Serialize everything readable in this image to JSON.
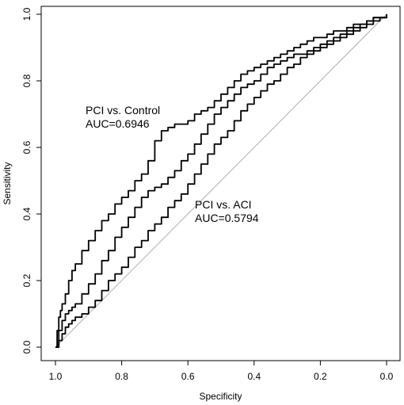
{
  "chart_data": {
    "type": "line",
    "title": "",
    "xlabel": "Specificity",
    "ylabel": "Sensitivity",
    "xlim": [
      1.0,
      0.0
    ],
    "ylim": [
      0.0,
      1.0
    ],
    "x_reversed": true,
    "grid": false,
    "legend": "none",
    "x_ticks": [
      "1.0",
      "0.8",
      "0.6",
      "0.4",
      "0.2",
      "0.0"
    ],
    "y_ticks": [
      "0.0",
      "0.2",
      "0.4",
      "0.6",
      "0.8",
      "1.0"
    ],
    "reference_line": {
      "from": [
        1.0,
        0.0
      ],
      "to": [
        0.0,
        1.0
      ],
      "color": "#b0b0b0"
    },
    "annotations": [
      {
        "line1": "PCI vs. Control",
        "line2": "AUC=0.6946"
      },
      {
        "line1": "PCI vs. ACI",
        "line2": "AUC=0.5794"
      }
    ],
    "series": [
      {
        "color": "#000000",
        "x": [
          1.0,
          0.995,
          0.99,
          0.985,
          0.98,
          0.97,
          0.96,
          0.95,
          0.94,
          0.92,
          0.9,
          0.88,
          0.86,
          0.84,
          0.82,
          0.8,
          0.78,
          0.76,
          0.74,
          0.72,
          0.7,
          0.68,
          0.66,
          0.64,
          0.62,
          0.6,
          0.58,
          0.56,
          0.54,
          0.52,
          0.5,
          0.48,
          0.46,
          0.44,
          0.42,
          0.4,
          0.38,
          0.36,
          0.34,
          0.32,
          0.3,
          0.28,
          0.26,
          0.24,
          0.22,
          0.2,
          0.18,
          0.16,
          0.14,
          0.12,
          0.1,
          0.08,
          0.06,
          0.04,
          0.02,
          0.0
        ],
        "y": [
          0.0,
          0.05,
          0.09,
          0.11,
          0.13,
          0.16,
          0.2,
          0.23,
          0.25,
          0.29,
          0.32,
          0.35,
          0.38,
          0.4,
          0.43,
          0.45,
          0.47,
          0.5,
          0.52,
          0.56,
          0.62,
          0.65,
          0.66,
          0.67,
          0.67,
          0.68,
          0.7,
          0.71,
          0.72,
          0.74,
          0.76,
          0.78,
          0.8,
          0.82,
          0.83,
          0.84,
          0.85,
          0.86,
          0.87,
          0.88,
          0.89,
          0.9,
          0.91,
          0.92,
          0.93,
          0.93,
          0.94,
          0.95,
          0.95,
          0.96,
          0.97,
          0.97,
          0.98,
          0.99,
          0.99,
          1.0
        ]
      },
      {
        "color": "#000000",
        "x": [
          1.0,
          0.99,
          0.98,
          0.97,
          0.96,
          0.95,
          0.94,
          0.92,
          0.9,
          0.88,
          0.86,
          0.84,
          0.82,
          0.8,
          0.78,
          0.76,
          0.74,
          0.72,
          0.7,
          0.68,
          0.66,
          0.64,
          0.62,
          0.6,
          0.58,
          0.56,
          0.54,
          0.52,
          0.5,
          0.48,
          0.46,
          0.44,
          0.42,
          0.4,
          0.38,
          0.36,
          0.34,
          0.32,
          0.3,
          0.28,
          0.26,
          0.24,
          0.22,
          0.2,
          0.18,
          0.16,
          0.14,
          0.12,
          0.1,
          0.08,
          0.06,
          0.04,
          0.02,
          0.0
        ],
        "y": [
          0.0,
          0.05,
          0.08,
          0.1,
          0.11,
          0.12,
          0.13,
          0.16,
          0.19,
          0.22,
          0.26,
          0.29,
          0.33,
          0.36,
          0.39,
          0.42,
          0.45,
          0.47,
          0.48,
          0.49,
          0.51,
          0.53,
          0.56,
          0.58,
          0.61,
          0.64,
          0.67,
          0.7,
          0.72,
          0.74,
          0.76,
          0.78,
          0.79,
          0.8,
          0.82,
          0.84,
          0.85,
          0.86,
          0.87,
          0.88,
          0.88,
          0.89,
          0.9,
          0.91,
          0.92,
          0.93,
          0.94,
          0.95,
          0.96,
          0.97,
          0.98,
          0.99,
          0.99,
          1.0
        ]
      },
      {
        "color": "#000000",
        "x": [
          1.0,
          0.99,
          0.98,
          0.97,
          0.96,
          0.95,
          0.94,
          0.92,
          0.9,
          0.88,
          0.86,
          0.84,
          0.82,
          0.8,
          0.78,
          0.76,
          0.74,
          0.72,
          0.7,
          0.68,
          0.66,
          0.64,
          0.62,
          0.6,
          0.58,
          0.56,
          0.54,
          0.52,
          0.5,
          0.48,
          0.46,
          0.44,
          0.42,
          0.4,
          0.38,
          0.36,
          0.34,
          0.32,
          0.3,
          0.28,
          0.26,
          0.24,
          0.22,
          0.2,
          0.18,
          0.16,
          0.14,
          0.12,
          0.1,
          0.08,
          0.06,
          0.04,
          0.02,
          0.0
        ],
        "y": [
          0.0,
          0.02,
          0.04,
          0.06,
          0.07,
          0.08,
          0.09,
          0.1,
          0.12,
          0.14,
          0.17,
          0.2,
          0.22,
          0.24,
          0.27,
          0.3,
          0.32,
          0.35,
          0.37,
          0.39,
          0.42,
          0.44,
          0.46,
          0.49,
          0.52,
          0.55,
          0.58,
          0.61,
          0.63,
          0.65,
          0.68,
          0.71,
          0.73,
          0.75,
          0.77,
          0.79,
          0.8,
          0.82,
          0.84,
          0.85,
          0.87,
          0.88,
          0.89,
          0.9,
          0.91,
          0.92,
          0.93,
          0.94,
          0.95,
          0.96,
          0.97,
          0.98,
          0.99,
          1.0
        ]
      }
    ]
  }
}
